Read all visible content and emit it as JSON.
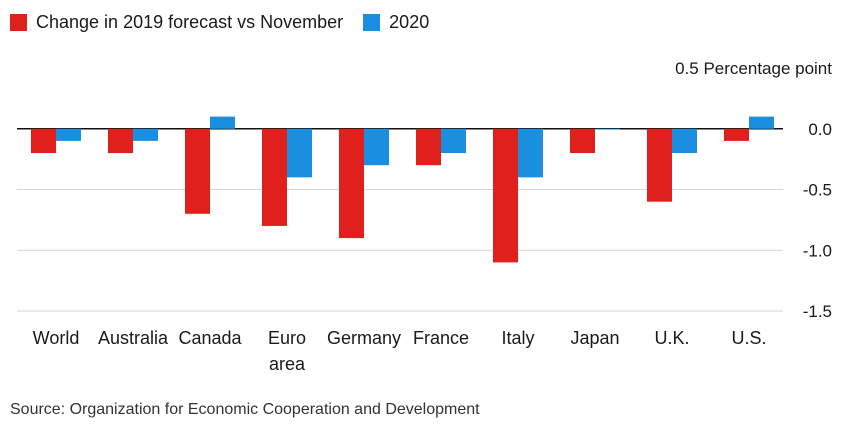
{
  "chart_data": {
    "type": "bar",
    "categories": [
      "World",
      "Australia",
      "Canada",
      "Euro area",
      "Germany",
      "France",
      "Italy",
      "Japan",
      "U.K.",
      "U.S."
    ],
    "category_lines": [
      [
        "World"
      ],
      [
        "Australia"
      ],
      [
        "Canada"
      ],
      [
        "Euro",
        "area"
      ],
      [
        "Germany"
      ],
      [
        "France"
      ],
      [
        "Italy"
      ],
      [
        "Japan"
      ],
      [
        "U.K."
      ],
      [
        "U.S."
      ]
    ],
    "series": [
      {
        "name": "Change in 2019 forecast vs November",
        "color": "#e0201c",
        "values": [
          -0.2,
          -0.2,
          -0.7,
          -0.8,
          -0.9,
          -0.3,
          -1.1,
          -0.2,
          -0.6,
          -0.1
        ]
      },
      {
        "name": "2020",
        "color": "#1a8fe0",
        "values": [
          -0.1,
          -0.1,
          0.1,
          -0.4,
          -0.3,
          -0.2,
          -0.4,
          0.0,
          -0.2,
          0.1
        ]
      }
    ],
    "ylabel": "Percentage point",
    "ylim": [
      -1.5,
      0.5
    ],
    "yticks": [
      0.5,
      0.0,
      -0.5,
      -1.0,
      -1.5
    ],
    "ytick_labels": [
      "0.5",
      "0.0",
      "-0.5",
      "-1.0",
      "-1.5"
    ],
    "top_tick_text": "0.5 Percentage point",
    "grid": true,
    "axis_color": "#111111",
    "grid_color": "#d6d6d6",
    "legend_position": "top-left"
  },
  "source": "Source: Organization for Economic Cooperation and Development"
}
